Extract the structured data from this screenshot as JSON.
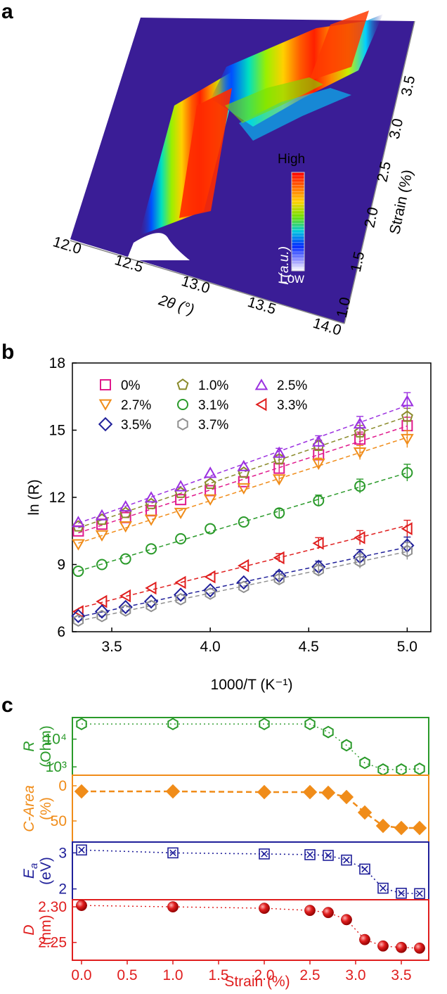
{
  "chart_data": [
    {
      "panel": "a",
      "type": "surface-3d",
      "xlabel": "2θ (°)",
      "xticks": [
        "12.0",
        "12.5",
        "13.0",
        "13.5",
        "14.0"
      ],
      "ylabel": "Strain (%)",
      "yticks": [
        "1.0",
        "1.5",
        "2.0",
        "2.5",
        "3.0",
        "3.5"
      ],
      "colorbar": {
        "label": "I (a.u.)",
        "high": "High",
        "low": "Low"
      }
    },
    {
      "panel": "b",
      "type": "scatter",
      "xlabel": "1000/T (K⁻¹)",
      "ylabel": "ln (R)",
      "xlim": [
        3.3,
        5.12
      ],
      "ylim": [
        6,
        18
      ],
      "xticks": [
        "3.5",
        "4.0",
        "4.5",
        "5.0"
      ],
      "yticks": [
        "6",
        "9",
        "12",
        "15",
        "18"
      ],
      "x": [
        3.33,
        3.45,
        3.57,
        3.7,
        3.85,
        4.0,
        4.17,
        4.35,
        4.55,
        4.76,
        5.0
      ],
      "series": [
        {
          "name": "0%",
          "marker": "square",
          "color": "#e0198c",
          "values": [
            10.5,
            10.8,
            11.1,
            11.4,
            11.9,
            12.3,
            12.7,
            13.3,
            13.9,
            14.6,
            15.2
          ]
        },
        {
          "name": "1.0%",
          "marker": "pentagon",
          "color": "#8a8a2a",
          "values": [
            10.7,
            11.0,
            11.3,
            11.7,
            12.2,
            12.6,
            13.1,
            13.7,
            14.3,
            14.9,
            15.6
          ]
        },
        {
          "name": "2.5%",
          "marker": "triangle-up",
          "color": "#9b30e0",
          "values": [
            10.9,
            11.2,
            11.6,
            12.0,
            12.5,
            13.1,
            13.4,
            14.0,
            14.5,
            15.3,
            16.3
          ]
        },
        {
          "name": "2.7%",
          "marker": "triangle-down",
          "color": "#f08c19",
          "values": [
            9.9,
            10.3,
            10.7,
            11.0,
            11.3,
            11.9,
            12.4,
            12.8,
            13.5,
            14.0,
            14.6
          ]
        },
        {
          "name": "3.1%",
          "marker": "circle",
          "color": "#2a9a2a",
          "values": [
            8.7,
            9.0,
            9.25,
            9.7,
            10.15,
            10.6,
            10.9,
            11.3,
            11.85,
            12.5,
            13.1
          ]
        },
        {
          "name": "3.3%",
          "marker": "triangle-left",
          "color": "#e01e1e",
          "values": [
            6.9,
            7.35,
            7.6,
            7.95,
            8.2,
            8.45,
            8.95,
            9.3,
            9.95,
            10.2,
            10.6
          ]
        },
        {
          "name": "3.5%",
          "marker": "diamond",
          "color": "#20209a",
          "values": [
            6.7,
            6.9,
            7.1,
            7.35,
            7.65,
            7.85,
            8.2,
            8.5,
            8.9,
            9.35,
            9.85
          ]
        },
        {
          "name": "3.7%",
          "marker": "hexagon",
          "color": "#909090",
          "values": [
            6.5,
            6.7,
            6.95,
            7.15,
            7.45,
            7.7,
            8.0,
            8.35,
            8.75,
            9.15,
            9.6
          ]
        }
      ]
    },
    {
      "panel": "c",
      "type": "line",
      "xlabel": "Strain (%)",
      "xlim": [
        -0.1,
        3.8
      ],
      "xticks": [
        "0.0",
        "0.5",
        "1.0",
        "1.5",
        "2.0",
        "2.5",
        "3.0",
        "3.5"
      ],
      "x": [
        0,
        1.0,
        2.0,
        2.5,
        2.7,
        2.9,
        3.1,
        3.3,
        3.5,
        3.7
      ],
      "subplots": [
        {
          "name": "R",
          "ylabel": "R",
          "yunit": "(Ohm)",
          "color": "#2a9a2a",
          "marker": "hexagon",
          "scale": "log",
          "ylim": [
            500,
            60000
          ],
          "yticks": [
            "10⁴",
            "10³"
          ],
          "values": [
            35000,
            35000,
            35000,
            35000,
            18000,
            6000,
            1400,
            800,
            800,
            850
          ]
        },
        {
          "name": "C-Area",
          "ylabel": "C-Area",
          "yunit": "(%)",
          "color": "#f08c19",
          "marker": "diamond-filled",
          "inverted": true,
          "ylim": [
            -15,
            80
          ],
          "yticks": [
            "0",
            "50"
          ],
          "values": [
            8,
            8,
            9,
            9,
            10,
            16,
            38,
            57,
            60,
            60
          ]
        },
        {
          "name": "Ea",
          "ylabel": "E",
          "ysub": "a",
          "yunit": "(eV)",
          "color": "#20209a",
          "marker": "boxed-x",
          "ylim": [
            1.7,
            3.3
          ],
          "yticks": [
            "3",
            "2"
          ],
          "values": [
            3.08,
            3.0,
            2.97,
            2.95,
            2.93,
            2.8,
            2.55,
            2.02,
            1.88,
            1.87
          ]
        },
        {
          "name": "D",
          "ylabel": "D",
          "yunit": "(nm)",
          "color": "#e01e1e",
          "marker": "sphere",
          "ylim": [
            2.225,
            2.31
          ],
          "yticks": [
            "2.30",
            "2.25"
          ],
          "values": [
            2.302,
            2.3,
            2.298,
            2.295,
            2.292,
            2.282,
            2.254,
            2.245,
            2.243,
            2.242
          ]
        }
      ]
    }
  ]
}
